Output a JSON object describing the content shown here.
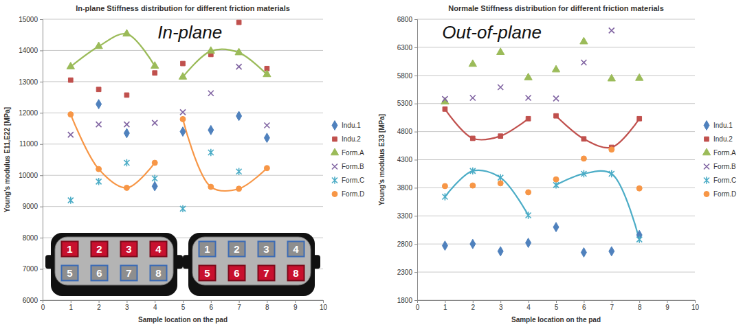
{
  "chart_data": [
    {
      "type": "scatter",
      "title": "In-plane Stiffness distribution for different friction materials",
      "annotation": "In-plane",
      "x_label": "Sample location on the pad",
      "y_label": "Young's modulus E11,E22 [MPa]",
      "x": [
        1,
        2,
        3,
        4,
        5,
        6,
        7,
        8
      ],
      "xlim": [
        0,
        10
      ],
      "xticks": [
        0,
        1,
        2,
        3,
        4,
        5,
        6,
        7,
        8,
        9,
        10
      ],
      "ylim": [
        6000,
        15000
      ],
      "yticks": [
        6000,
        7000,
        8000,
        9000,
        10000,
        11000,
        12000,
        13000,
        14000,
        15000
      ],
      "grid": "y",
      "legend": "right",
      "series": [
        {
          "name": "Indu.1",
          "color": "#4F81BD",
          "marker": "diamond",
          "values": [
            null,
            12280,
            11350,
            9650,
            11400,
            11450,
            11900,
            11200
          ]
        },
        {
          "name": "Indu.2",
          "color": "#C0504D",
          "marker": "square",
          "values": [
            13050,
            12750,
            12570,
            13280,
            13580,
            13870,
            14900,
            13420
          ]
        },
        {
          "name": "Form.A",
          "color": "#9BBB59",
          "marker": "triangle",
          "line_style": "solid",
          "values": [
            13480,
            14130,
            14530,
            13500,
            13150,
            13980,
            13930,
            13230
          ]
        },
        {
          "name": "Form.B",
          "color": "#8064A2",
          "marker": "x",
          "values": [
            11300,
            11630,
            11630,
            11680,
            12020,
            12630,
            13480,
            11600
          ]
        },
        {
          "name": "Form.C",
          "color": "#4BACC6",
          "marker": "asterisk",
          "values": [
            9200,
            9800,
            10400,
            9900,
            8930,
            10730,
            10120,
            null
          ]
        },
        {
          "name": "Form.D",
          "color": "#F79646",
          "marker": "circle",
          "line_style": "solid",
          "values": [
            11950,
            10200,
            9600,
            10400,
            11800,
            9630,
            9570,
            10230
          ]
        }
      ]
    },
    {
      "type": "scatter",
      "title": "Normale Stiffness distribution for different friction materials",
      "annotation": "Out-of-plane",
      "x_label": "Sample location on the pad",
      "y_label": "Young's modulus E33 [MPa]",
      "x": [
        1,
        2,
        3,
        4,
        5,
        6,
        7,
        8
      ],
      "xlim": [
        0,
        10
      ],
      "xticks": [
        0,
        1,
        2,
        3,
        4,
        5,
        6,
        7,
        8,
        9,
        10
      ],
      "ylim": [
        1800,
        6800
      ],
      "yticks": [
        1800,
        2300,
        2800,
        3300,
        3800,
        4300,
        4800,
        5300,
        5800,
        6300,
        6800
      ],
      "grid": "y",
      "legend": "right",
      "series": [
        {
          "name": "Indu.1",
          "color": "#4F81BD",
          "marker": "diamond",
          "values": [
            2770,
            2800,
            2670,
            2820,
            3100,
            2650,
            2670,
            2960
          ]
        },
        {
          "name": "Indu.2",
          "color": "#C0504D",
          "marker": "square",
          "line_style": "solid",
          "values": [
            5200,
            4680,
            4720,
            5030,
            5080,
            4670,
            4520,
            5030
          ]
        },
        {
          "name": "Form.A",
          "color": "#9BBB59",
          "marker": "triangle",
          "values": [
            5330,
            6000,
            6210,
            5760,
            5900,
            6400,
            5740,
            5750
          ]
        },
        {
          "name": "Form.B",
          "color": "#8064A2",
          "marker": "x",
          "values": [
            5380,
            5400,
            5590,
            5400,
            5390,
            6030,
            6600,
            null
          ]
        },
        {
          "name": "Form.C",
          "color": "#4BACC6",
          "marker": "asterisk",
          "line_style": "solid",
          "values": [
            3640,
            4100,
            3980,
            3310,
            3850,
            4050,
            4050,
            2880
          ]
        },
        {
          "name": "Form.D",
          "color": "#F79646",
          "marker": "circle",
          "values": [
            3830,
            3840,
            3880,
            3720,
            3950,
            4320,
            4480,
            3790
          ]
        }
      ]
    }
  ],
  "pad_rows": [
    [
      1,
      2,
      3,
      4
    ],
    [
      5,
      6,
      7,
      8
    ]
  ]
}
